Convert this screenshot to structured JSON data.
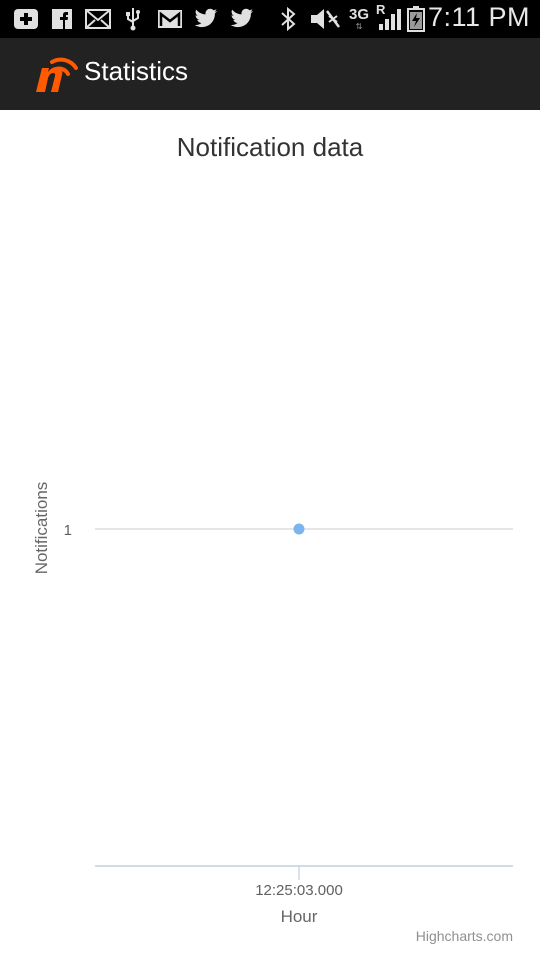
{
  "status_bar": {
    "time": "7:11 PM",
    "network_label": "3G",
    "roaming_label": "R",
    "icons": [
      "add-box-icon",
      "facebook-icon",
      "mail-icon",
      "usb-icon",
      "gmail-icon",
      "twitter-icon",
      "twitter-icon",
      "bluetooth-icon",
      "mute-icon",
      "signal-icon",
      "battery-charging-icon"
    ]
  },
  "action_bar": {
    "title": "Statistics",
    "logo_icon": "app-logo-icon",
    "accent_color": "#ff5a00"
  },
  "chart_data": {
    "type": "scatter",
    "title": "Notification data",
    "xlabel": "Hour",
    "ylabel": "Notifications",
    "x": [
      "12:25:03.000"
    ],
    "y": [
      1
    ],
    "y_ticks": [
      "1"
    ],
    "x_ticks": [
      "12:25:03.000"
    ],
    "grid": true,
    "legend": "none",
    "marker_color": "#7cb5ec",
    "credits": "Highcharts.com"
  }
}
